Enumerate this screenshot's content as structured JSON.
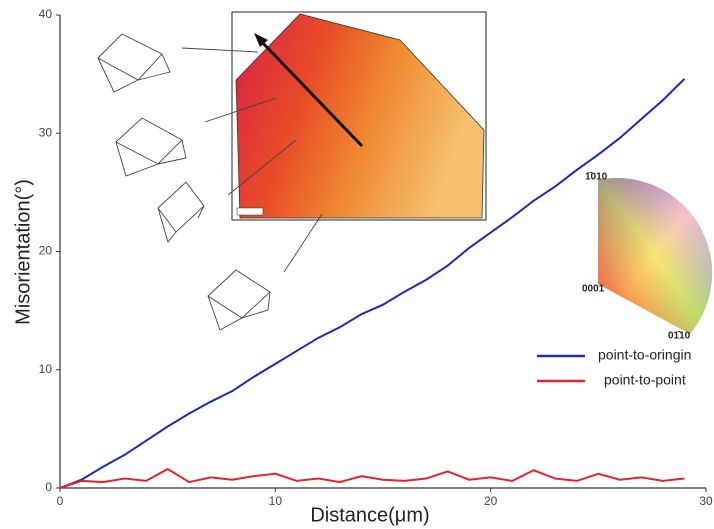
{
  "chart_data": {
    "type": "line",
    "x_label": "Distance(μm)",
    "y_label": "Misorientation(°)",
    "x": [
      0,
      1,
      2,
      3,
      4,
      5,
      6,
      7,
      8,
      9,
      10,
      11,
      12,
      13,
      14,
      15,
      16,
      17,
      18,
      19,
      20,
      21,
      22,
      23,
      24,
      25,
      26,
      27,
      28,
      29
    ],
    "series": [
      {
        "name": "point-to-oringin",
        "color": "#1c2bb3",
        "values": [
          0,
          0.7,
          1.8,
          2.8,
          4.0,
          5.2,
          6.3,
          7.3,
          8.2,
          9.4,
          10.5,
          11.6,
          12.7,
          13.6,
          14.7,
          15.5,
          16.6,
          17.6,
          18.8,
          20.3,
          21.6,
          22.9,
          24.3,
          25.5,
          26.9,
          28.2,
          29.6,
          31.2,
          32.8,
          34.6
        ]
      },
      {
        "name": "point-to-point",
        "color": "#e0262a",
        "values": [
          0,
          0.6,
          0.5,
          0.8,
          0.6,
          1.6,
          0.5,
          0.9,
          0.7,
          1.0,
          1.2,
          0.6,
          0.8,
          0.5,
          1.0,
          0.7,
          0.6,
          0.8,
          1.4,
          0.7,
          0.9,
          0.6,
          1.5,
          0.8,
          0.6,
          1.2,
          0.7,
          0.9,
          0.6,
          0.8
        ]
      }
    ],
    "xlim": [
      0,
      30
    ],
    "ylim": [
      0,
      40
    ],
    "xticks": [
      0,
      10,
      20,
      30
    ],
    "yticks": [
      0,
      10,
      20,
      30,
      40
    ],
    "legend": "lower-right",
    "annotations": [
      "1̄010",
      "0001",
      "01̄10"
    ]
  }
}
